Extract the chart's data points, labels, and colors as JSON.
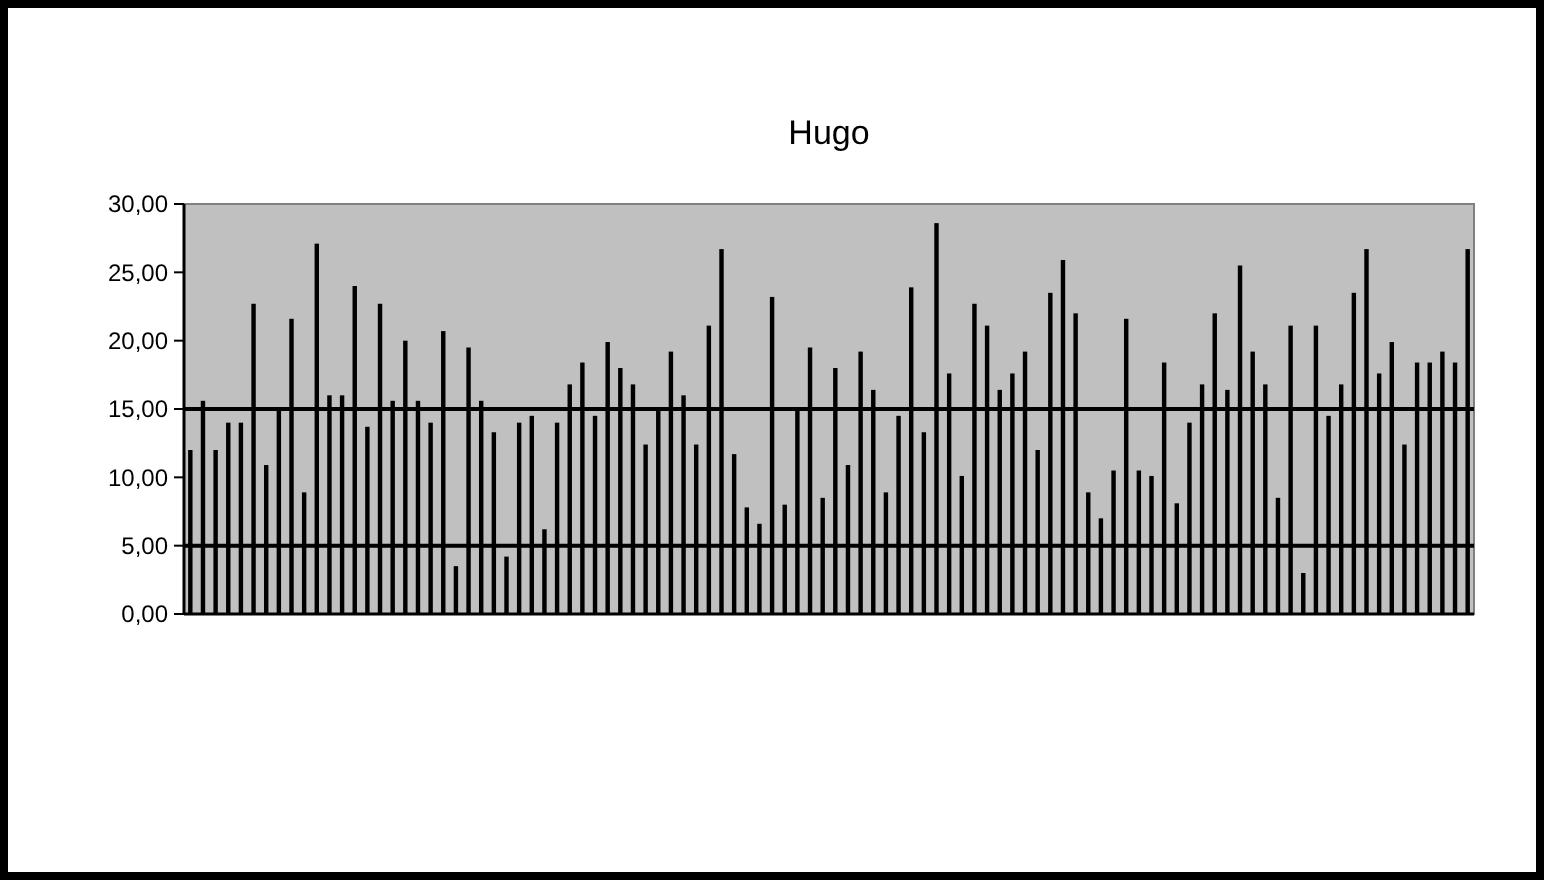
{
  "chart_data": {
    "type": "bar",
    "title": "Hugo",
    "categories": [
      null,
      null,
      null,
      null,
      null,
      null,
      null,
      null,
      null,
      null,
      null,
      null,
      null,
      null,
      null,
      null,
      null,
      null,
      null,
      null,
      null,
      null,
      null,
      null,
      null,
      null,
      null,
      null,
      null,
      null,
      null,
      null,
      null,
      null,
      null,
      null,
      null,
      null,
      null,
      null,
      null,
      null,
      null,
      null,
      null,
      null,
      null,
      null,
      null,
      null,
      null,
      null,
      null,
      null,
      null,
      null,
      null,
      null,
      null,
      null,
      null,
      null,
      null,
      null,
      null,
      null,
      null,
      null,
      null,
      null,
      null,
      null,
      null,
      null,
      null,
      null,
      null,
      null,
      null,
      null,
      null,
      null,
      null,
      null,
      null,
      null,
      null,
      null,
      null,
      null,
      null,
      null,
      null,
      null,
      null,
      null,
      null,
      null,
      null,
      null,
      null,
      null
    ],
    "values": [
      12.0,
      15.6,
      12.0,
      14.0,
      14.0,
      22.7,
      10.9,
      15.1,
      21.6,
      8.9,
      27.1,
      16.0,
      16.0,
      24.0,
      13.7,
      22.7,
      15.6,
      20.0,
      15.6,
      14.0,
      20.7,
      3.5,
      19.5,
      15.6,
      13.3,
      4.2,
      14.0,
      14.5,
      6.2,
      14.0,
      16.8,
      18.4,
      14.5,
      19.9,
      18.0,
      16.8,
      12.4,
      15.1,
      19.2,
      16.0,
      12.4,
      21.1,
      26.7,
      11.7,
      7.8,
      6.6,
      23.2,
      8.0,
      15.1,
      19.5,
      8.5,
      18.0,
      10.9,
      19.2,
      16.4,
      8.9,
      14.5,
      23.9,
      13.3,
      28.6,
      17.6,
      10.1,
      22.7,
      21.1,
      16.4,
      17.6,
      19.2,
      12.0,
      23.5,
      25.9,
      22.0,
      8.9,
      7.0,
      10.5,
      21.6,
      10.5,
      10.1,
      18.4,
      8.1,
      14.0,
      16.8,
      22.0,
      16.4,
      25.5,
      19.2,
      16.8,
      8.5,
      21.1,
      3.0,
      21.1,
      14.5,
      16.8,
      23.5,
      26.7,
      17.6,
      19.9,
      12.4,
      18.4,
      18.4,
      19.2,
      18.4,
      26.7
    ],
    "color": "#000000",
    "ylim": [
      0,
      30
    ],
    "yticks": [
      {
        "value": 0,
        "label": "0,00"
      },
      {
        "value": 5,
        "label": "5,00"
      },
      {
        "value": 10,
        "label": "10,00"
      },
      {
        "value": 15,
        "label": "15,00"
      },
      {
        "value": 20,
        "label": "20,00"
      },
      {
        "value": 25,
        "label": "25,00"
      },
      {
        "value": 30,
        "label": "30,00"
      }
    ],
    "ref_lines": [
      {
        "axis": "y",
        "value": 5,
        "color": "#000000"
      },
      {
        "axis": "y",
        "value": 15,
        "color": "#000000"
      }
    ]
  }
}
